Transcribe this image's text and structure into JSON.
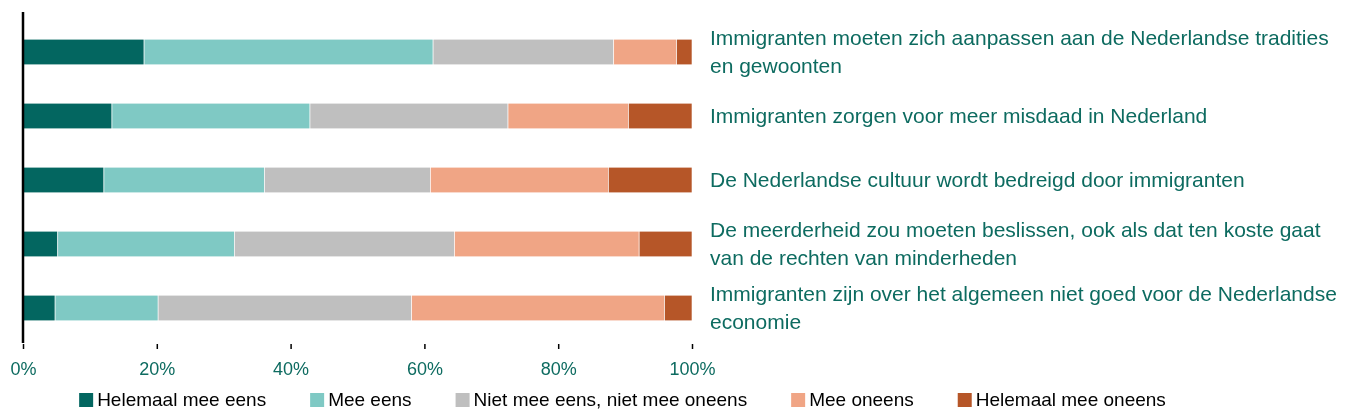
{
  "chart_data": {
    "type": "bar",
    "orientation": "horizontal",
    "stacked": true,
    "categories": [
      "Immigranten moeten zich aanpassen aan de Nederlandse tradities en gewoonten",
      "Immigranten zorgen voor meer misdaad in Nederland",
      "De Nederlandse cultuur wordt bedreigd door immigranten",
      "De meerderheid zou moeten beslissen, ook als dat ten koste gaat van de rechten van minderheden",
      "Immigranten zijn over het algemeen niet goed voor de Nederlandse economie"
    ],
    "series": [
      {
        "name": "Helemaal mee eens",
        "color": "#036660",
        "values": [
          18.1,
          13.3,
          12.1,
          5.2,
          4.8
        ]
      },
      {
        "name": "Mee eens",
        "color": "#7fc9c4",
        "values": [
          43.2,
          29.6,
          24.0,
          26.4,
          15.4
        ]
      },
      {
        "name": "Niet mee eens, niet mee oneens",
        "color": "#bfbfbf",
        "values": [
          27.0,
          29.6,
          24.8,
          32.9,
          37.9
        ]
      },
      {
        "name": "Mee oneens",
        "color": "#f0a585",
        "values": [
          9.4,
          18.0,
          26.6,
          27.6,
          37.8
        ]
      },
      {
        "name": "Helemaal mee oneens",
        "color": "#b65628",
        "values": [
          2.3,
          9.5,
          12.5,
          7.9,
          4.1
        ]
      }
    ],
    "xlim": [
      0,
      100
    ],
    "xticks": [
      {
        "value": 0,
        "label": "0%"
      },
      {
        "value": 20,
        "label": "20%"
      },
      {
        "value": 40,
        "label": "40%"
      },
      {
        "value": 60,
        "label": "60%"
      },
      {
        "value": 80,
        "label": "80%"
      },
      {
        "value": 100,
        "label": "100%"
      }
    ],
    "grid": false,
    "legend": "bottom"
  }
}
